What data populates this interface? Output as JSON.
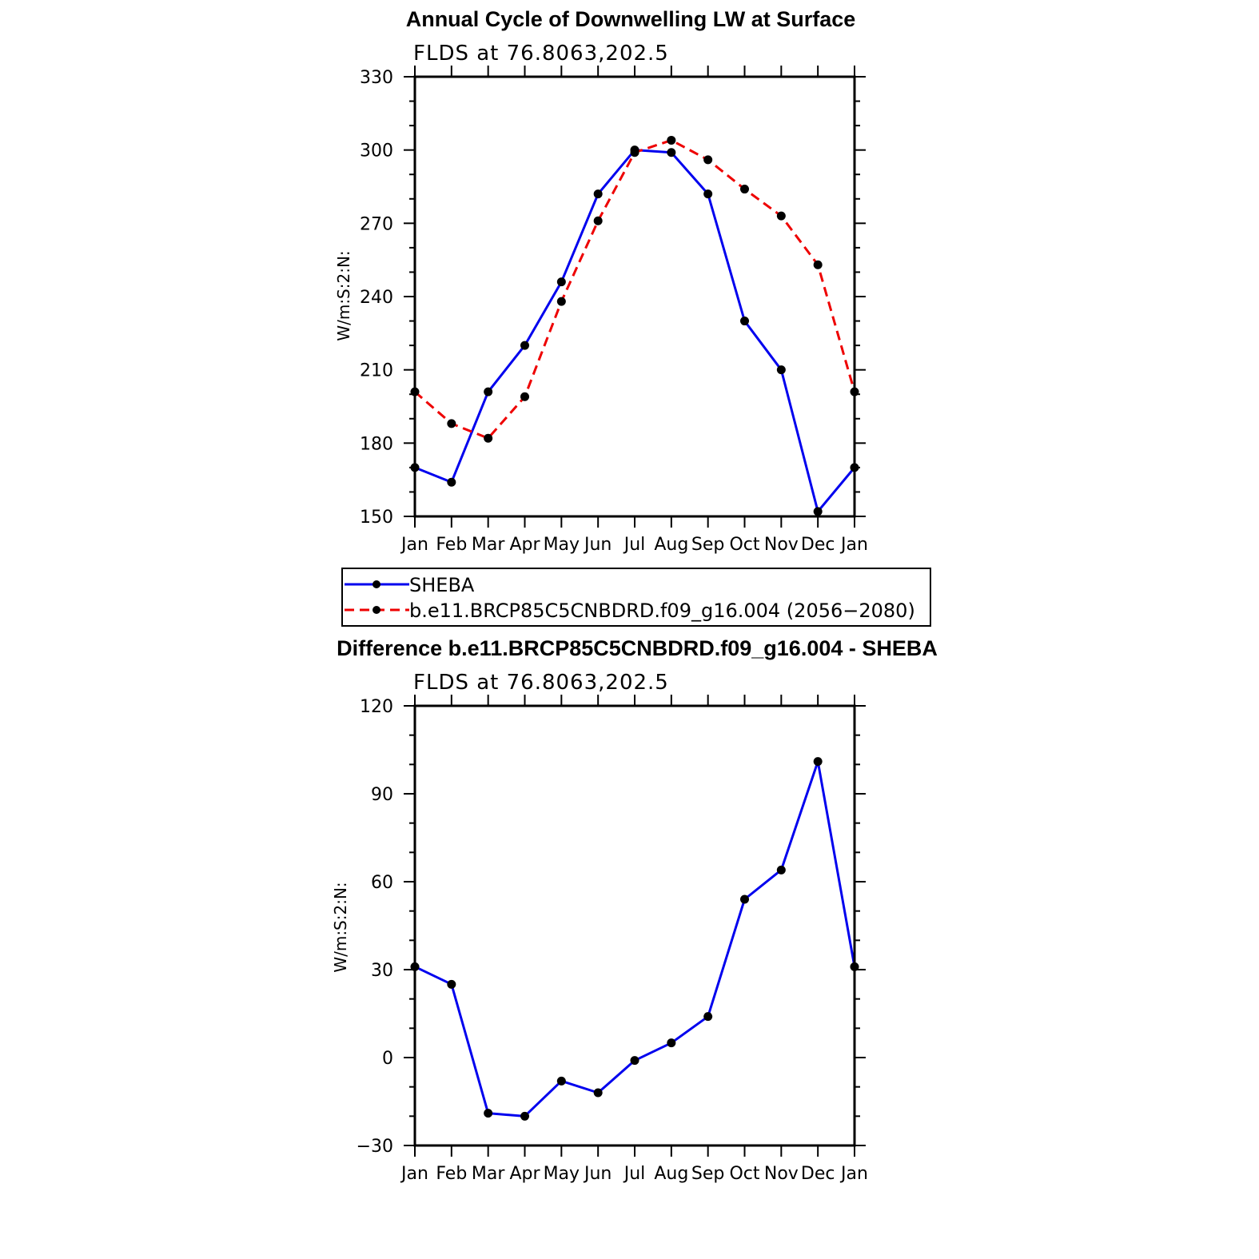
{
  "chart_data": [
    {
      "type": "line",
      "title": "Annual Cycle of Downwelling LW at Surface",
      "subtitle": "FLDS at 76.8063,202.5",
      "xlabel": "",
      "ylabel": "W/m:S:2:N:",
      "categories": [
        "Jan",
        "Feb",
        "Mar",
        "Apr",
        "May",
        "Jun",
        "Jul",
        "Aug",
        "Sep",
        "Oct",
        "Nov",
        "Dec",
        "Jan"
      ],
      "yticks": [
        "150",
        "180",
        "210",
        "240",
        "270",
        "300",
        "330"
      ],
      "ylim": [
        150,
        330
      ],
      "grid": false,
      "series": [
        {
          "name": "SHEBA",
          "color": "#0000ee",
          "dash": "solid",
          "values": [
            170,
            164,
            201,
            220,
            246,
            282,
            300,
            299,
            282,
            230,
            210,
            152,
            170
          ]
        },
        {
          "name": "b.e11.BRCP85C5CNBDRD.f09_g16.004 (2056−2080)",
          "color": "#ee0000",
          "dash": "dashed",
          "values": [
            201,
            188,
            182,
            199,
            238,
            271,
            299,
            304,
            296,
            284,
            273,
            253,
            201
          ]
        }
      ],
      "legend": "below"
    },
    {
      "type": "line",
      "title": "Difference b.e11.BRCP85C5CNBDRD.f09_g16.004 - SHEBA",
      "subtitle": "FLDS at 76.8063,202.5",
      "xlabel": "",
      "ylabel": "W/m:S:2:N:",
      "categories": [
        "Jan",
        "Feb",
        "Mar",
        "Apr",
        "May",
        "Jun",
        "Jul",
        "Aug",
        "Sep",
        "Oct",
        "Nov",
        "Dec",
        "Jan"
      ],
      "yticks": [
        "−30",
        "0",
        "30",
        "60",
        "90",
        "120"
      ],
      "ylim": [
        -30,
        120
      ],
      "grid": false,
      "series": [
        {
          "name": "",
          "color": "#0000ee",
          "dash": "solid",
          "values": [
            31,
            25,
            -19,
            -20,
            -8,
            -12,
            -1,
            5,
            14,
            54,
            64,
            101,
            31
          ]
        }
      ]
    }
  ]
}
